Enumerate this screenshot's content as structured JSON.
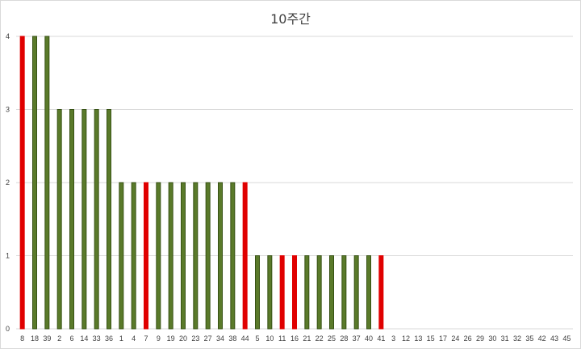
{
  "chart_data": {
    "type": "bar",
    "title": "10주간",
    "xlabel": "",
    "ylabel": "",
    "ylim": [
      0,
      4
    ],
    "yticks": [
      "0",
      "1",
      "2",
      "3",
      "4"
    ],
    "grid": true,
    "legend": "none",
    "categories": [
      "8",
      "18",
      "39",
      "2",
      "6",
      "14",
      "33",
      "36",
      "1",
      "4",
      "7",
      "9",
      "19",
      "20",
      "23",
      "27",
      "34",
      "38",
      "44",
      "5",
      "10",
      "11",
      "16",
      "21",
      "22",
      "25",
      "28",
      "37",
      "40",
      "41",
      "3",
      "12",
      "13",
      "15",
      "17",
      "24",
      "26",
      "29",
      "30",
      "31",
      "32",
      "35",
      "42",
      "43",
      "45"
    ],
    "values": [
      4,
      4,
      4,
      3,
      3,
      3,
      3,
      3,
      2,
      2,
      2,
      2,
      2,
      2,
      2,
      2,
      2,
      2,
      2,
      1,
      1,
      1,
      1,
      1,
      1,
      1,
      1,
      1,
      1,
      1,
      0,
      0,
      0,
      0,
      0,
      0,
      0,
      0,
      0,
      0,
      0,
      0,
      0,
      0,
      0
    ],
    "highlighted": [
      "8",
      "7",
      "44",
      "11",
      "16",
      "41"
    ],
    "colors": {
      "normal": "#5a7a2a",
      "normal_edge": "#375214",
      "highlight": "#e00000",
      "grid": "#d9d9d9"
    }
  }
}
